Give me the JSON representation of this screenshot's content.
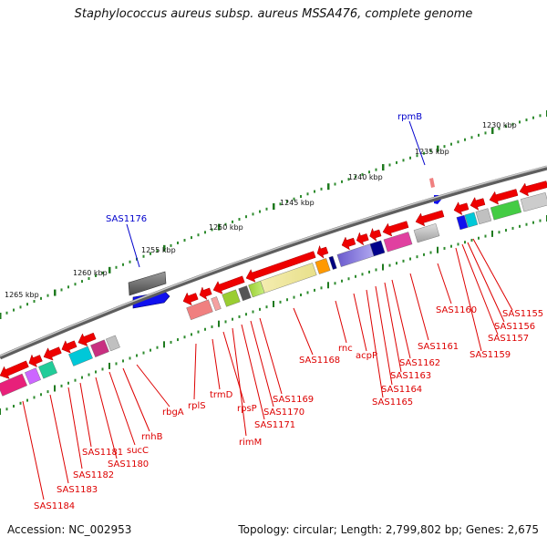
{
  "title": "Staphylococcus aureus subsp. aureus MSSA476, complete genome",
  "footer": {
    "accession": "Accession: NC_002953",
    "stats": "Topology: circular; Length: 2,799,802 bp; Genes: 2,675"
  },
  "colors": {
    "backbone": "#7a7a7a",
    "tick_major": "#1f7a1f",
    "tick_minor": "#2e8b2e",
    "gene_arrow": "#ee0000",
    "label_red": "#dd0000",
    "label_blue": "#0000cc"
  },
  "scale_labels": [
    "1230 kbp",
    "1235 kbp",
    "1240 kbp",
    "1245 kbp",
    "1250 kbp",
    "1255 kbp",
    "1260 kbp",
    "1265 kbp"
  ],
  "gene_labels": [
    {
      "text": "rpmB",
      "color": "blue"
    },
    {
      "text": "SAS1176",
      "color": "blue"
    },
    {
      "text": "SAS1155",
      "color": "red"
    },
    {
      "text": "SAS1156",
      "color": "red"
    },
    {
      "text": "SAS1157",
      "color": "red"
    },
    {
      "text": "SAS1159",
      "color": "red"
    },
    {
      "text": "SAS1160",
      "color": "red"
    },
    {
      "text": "SAS1161",
      "color": "red"
    },
    {
      "text": "SAS1162",
      "color": "red"
    },
    {
      "text": "SAS1163",
      "color": "red"
    },
    {
      "text": "SAS1164",
      "color": "red"
    },
    {
      "text": "SAS1165",
      "color": "red"
    },
    {
      "text": "acpP",
      "color": "red"
    },
    {
      "text": "rnc",
      "color": "red"
    },
    {
      "text": "SAS1168",
      "color": "red"
    },
    {
      "text": "SAS1169",
      "color": "red"
    },
    {
      "text": "SAS1170",
      "color": "red"
    },
    {
      "text": "SAS1171",
      "color": "red"
    },
    {
      "text": "rimM",
      "color": "red"
    },
    {
      "text": "rpsP",
      "color": "red"
    },
    {
      "text": "trmD",
      "color": "red"
    },
    {
      "text": "rplS",
      "color": "red"
    },
    {
      "text": "rbgA",
      "color": "red"
    },
    {
      "text": "rnhB",
      "color": "red"
    },
    {
      "text": "sucC",
      "color": "red"
    },
    {
      "text": "SAS1180",
      "color": "red"
    },
    {
      "text": "SAS1181",
      "color": "red"
    },
    {
      "text": "SAS1182",
      "color": "red"
    },
    {
      "text": "SAS1183",
      "color": "red"
    },
    {
      "text": "SAS1184",
      "color": "red"
    }
  ]
}
